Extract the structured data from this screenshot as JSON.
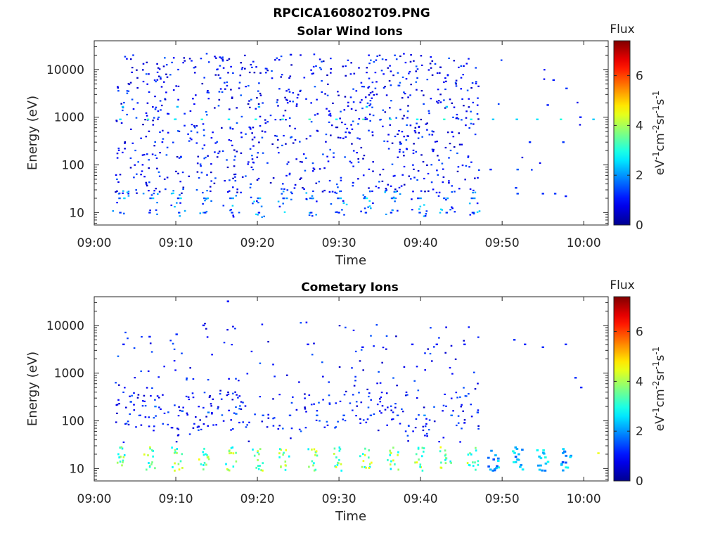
{
  "figure_title": "RPCICA160802T09.PNG",
  "colormap": {
    "stops": [
      "#00008f",
      "#0000ff",
      "#0080ff",
      "#00ffff",
      "#80ff80",
      "#ffff00",
      "#ff8000",
      "#ff0000",
      "#800000"
    ]
  },
  "chart_data": [
    {
      "type": "heatmap",
      "title": "Solar Wind Ions",
      "xlabel": "Time",
      "ylabel": "Energy (eV)",
      "x_ticks": [
        "09:00",
        "09:10",
        "09:20",
        "09:30",
        "09:40",
        "09:50",
        "10:00"
      ],
      "x_range_minutes": [
        0,
        63
      ],
      "y_scale": "log",
      "y_ticks": [
        "10",
        "100",
        "1000",
        "10000"
      ],
      "y_range": [
        5.5,
        40000
      ],
      "colorbar": {
        "label_top": "Flux",
        "unit": "eV-1cm-2sr-1s-1",
        "range": [
          0,
          7.4
        ],
        "ticks": [
          "0",
          "2",
          "4",
          "6"
        ]
      },
      "grid": false,
      "description_of_data": "Sparse log-energy time spectrogram; low flux scatter across 30 eV-30 keV, recurring enhancement near 800-1000 eV and 15-25 eV, dense data until ~09:47, sparse after.",
      "points": [
        [
          3.2,
          900,
          2.6
        ],
        [
          6.6,
          900,
          3.2
        ],
        [
          9.9,
          900,
          2.8
        ],
        [
          13.2,
          900,
          3.0
        ],
        [
          16.5,
          900,
          2.7
        ],
        [
          19.8,
          900,
          2.9
        ],
        [
          23.1,
          900,
          3.1
        ],
        [
          26.4,
          900,
          3.3
        ],
        [
          29.7,
          900,
          2.8
        ],
        [
          33.0,
          900,
          3.4
        ],
        [
          36.3,
          900,
          3.0
        ],
        [
          39.6,
          900,
          2.8
        ],
        [
          42.9,
          900,
          3.1
        ],
        [
          46.2,
          900,
          2.9
        ],
        [
          48.9,
          900,
          2.4
        ],
        [
          51.8,
          900,
          2.5
        ],
        [
          54.3,
          900,
          2.6
        ],
        [
          57.2,
          900,
          3.0
        ],
        [
          61.2,
          900,
          2.4
        ],
        [
          3.5,
          1650,
          2.4
        ],
        [
          10.2,
          1650,
          2.3
        ],
        [
          20.2,
          1650,
          2.2
        ],
        [
          33.4,
          1650,
          2.5
        ],
        [
          43.2,
          1650,
          2.4
        ],
        [
          3.1,
          20,
          1.6
        ],
        [
          3.7,
          20,
          2.5
        ],
        [
          6.9,
          20,
          1.4
        ],
        [
          7.2,
          20,
          2.4
        ],
        [
          10.3,
          20,
          1.2
        ],
        [
          10.6,
          20,
          2.6
        ],
        [
          13.5,
          20,
          1.6
        ],
        [
          13.9,
          20,
          2.3
        ],
        [
          16.7,
          20,
          1.5
        ],
        [
          17.0,
          20,
          2.2
        ],
        [
          20.1,
          20,
          1.5
        ],
        [
          20.3,
          20,
          2.4
        ],
        [
          23.2,
          20,
          1.3
        ],
        [
          23.6,
          20,
          2.0
        ],
        [
          26.5,
          20,
          1.5
        ],
        [
          26.8,
          20,
          2.0
        ],
        [
          29.9,
          20,
          1.4
        ],
        [
          30.2,
          20,
          2.3
        ],
        [
          33.1,
          20,
          1.6
        ],
        [
          33.4,
          20,
          2.8
        ],
        [
          36.5,
          20,
          1.5
        ],
        [
          36.8,
          20,
          2.5
        ],
        [
          39.7,
          20,
          1.3
        ],
        [
          40.0,
          20,
          2.0
        ],
        [
          42.9,
          20,
          1.5
        ],
        [
          43.3,
          20,
          2.1
        ],
        [
          46.3,
          20,
          1.5
        ],
        [
          46.6,
          20,
          2.0
        ],
        [
          3.2,
          10,
          1.3
        ],
        [
          6.8,
          10,
          1.2
        ],
        [
          10.4,
          10,
          1.4
        ],
        [
          13.6,
          10,
          1.2
        ],
        [
          16.9,
          10,
          1.3
        ],
        [
          20.2,
          10,
          1.1
        ],
        [
          26.6,
          10,
          1.3
        ],
        [
          30.0,
          10,
          1.2
        ],
        [
          33.3,
          10,
          1.3
        ],
        [
          36.4,
          10,
          1.2
        ],
        [
          39.9,
          10,
          1.4
        ],
        [
          43.2,
          10,
          1.3
        ],
        [
          46.4,
          10,
          1.2
        ],
        [
          51.9,
          25,
          1.4
        ],
        [
          55.0,
          25,
          1.2
        ],
        [
          56.5,
          25,
          1.3
        ],
        [
          57.8,
          22,
          1.1
        ],
        [
          51.7,
          33,
          1.3
        ],
        [
          48.6,
          80,
          1.2
        ],
        [
          51.9,
          80,
          1.6
        ],
        [
          53.4,
          300,
          1.2
        ],
        [
          55.6,
          1800,
          1.1
        ],
        [
          57.5,
          300,
          1.3
        ],
        [
          56.3,
          6000,
          1.1
        ],
        [
          57.9,
          4000,
          1.3
        ],
        [
          59.6,
          1000,
          1.1
        ]
      ]
    },
    {
      "type": "heatmap",
      "title": "Cometary Ions",
      "xlabel": "Time",
      "ylabel": "Energy (eV)",
      "x_ticks": [
        "09:00",
        "09:10",
        "09:20",
        "09:30",
        "09:40",
        "09:50",
        "10:00"
      ],
      "x_range_minutes": [
        0,
        63
      ],
      "y_scale": "log",
      "y_ticks": [
        "10",
        "100",
        "1000",
        "10000"
      ],
      "y_range": [
        5.5,
        40000
      ],
      "colorbar": {
        "label_top": "Flux",
        "unit": "eV-1cm-2sr-1s-1",
        "range": [
          0,
          7.4
        ],
        "ticks": [
          "0",
          "2",
          "4",
          "6"
        ]
      },
      "grid": false,
      "description_of_data": "Periodic bright columns (flux 3-4.5) at 10-30 eV every ~3.3 min, sparse low flux from 30 eV to 10 keV; columns continue to ~09:58 and a single point near 10:01.",
      "columns_minutes": [
        3.5,
        6.8,
        10.2,
        13.5,
        16.8,
        20.1,
        23.3,
        26.7,
        30.0,
        33.3,
        36.6,
        39.8,
        43.1,
        46.4,
        48.9,
        51.9,
        55.0,
        57.9
      ],
      "points": [
        [
          61.8,
          21,
          4.5
        ],
        [
          4.5,
          250,
          1.4
        ],
        [
          7.5,
          200,
          1.8
        ],
        [
          10.8,
          160,
          1.6
        ],
        [
          14.0,
          150,
          1.8
        ],
        [
          17.4,
          140,
          1.7
        ],
        [
          20.7,
          130,
          1.5
        ],
        [
          24.0,
          130,
          1.4
        ],
        [
          27.3,
          130,
          1.6
        ],
        [
          30.6,
          130,
          1.5
        ],
        [
          33.9,
          130,
          1.5
        ],
        [
          37.2,
          130,
          1.5
        ],
        [
          40.5,
          130,
          2.0
        ],
        [
          43.8,
          130,
          1.7
        ],
        [
          47.0,
          150,
          1.4
        ],
        [
          3.6,
          4000,
          1.1
        ],
        [
          6.8,
          5800,
          1.1
        ],
        [
          10.1,
          6500,
          1.2
        ],
        [
          13.4,
          10000,
          1.1
        ],
        [
          16.4,
          32000,
          1.0
        ],
        [
          26.2,
          4000,
          1.0
        ],
        [
          32.9,
          3500,
          1.0
        ],
        [
          39.0,
          4000,
          1.1
        ],
        [
          42.0,
          4000,
          1.1
        ],
        [
          45.4,
          4000,
          1.1
        ],
        [
          51.5,
          5000,
          1.2
        ],
        [
          52.8,
          4000,
          1.2
        ],
        [
          55.0,
          3500,
          1.2
        ],
        [
          57.8,
          4000,
          1.2
        ],
        [
          59.7,
          500,
          1.2
        ],
        [
          59.0,
          800,
          1.2
        ]
      ]
    }
  ]
}
